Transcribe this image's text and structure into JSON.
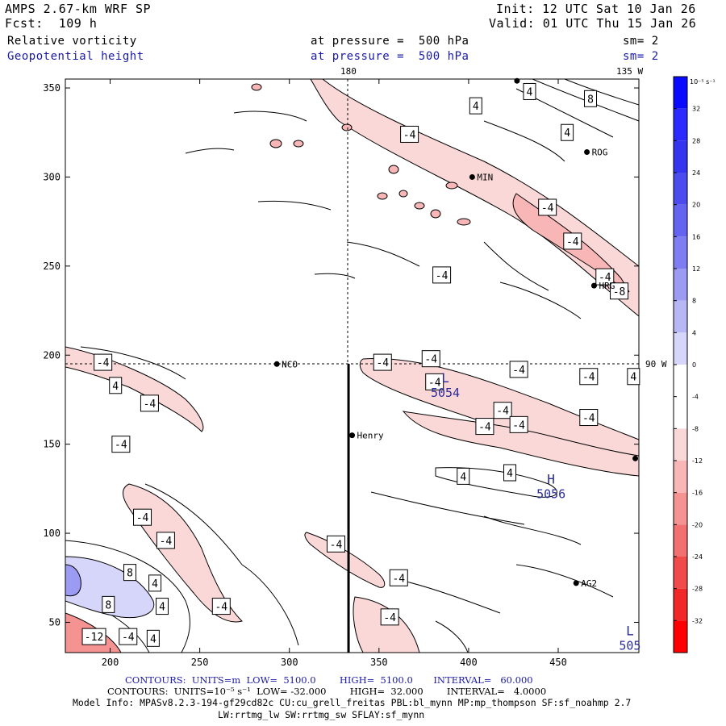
{
  "header": {
    "model": "AMPS 2.67-km WRF SP",
    "forecast": "Fcst:  109 h",
    "init": "Init: 12 UTC Sat 10 Jan 26",
    "valid": "Valid: 01 UTC Thu 15 Jan 26",
    "field1": "Relative vorticity",
    "field2": "Geopotential height",
    "pressure1": "at pressure =  500 hPa",
    "pressure2": "at pressure =  500 hPa",
    "sm1": "sm= 2",
    "sm2": "sm= 2"
  },
  "map": {
    "lon_labels": {
      "top": "180",
      "top_right": "135 W",
      "right": "90 W"
    },
    "x_axis": {
      "range": [
        175,
        495
      ],
      "ticks": [
        200,
        250,
        300,
        350,
        400,
        450
      ]
    },
    "y_axis": {
      "range": [
        33,
        355
      ],
      "ticks": [
        50,
        100,
        150,
        200,
        250,
        300,
        350
      ]
    },
    "stations": [
      {
        "name": "NCO",
        "x": 293,
        "y": 195
      },
      {
        "name": "Henry",
        "x": 335,
        "y": 155
      },
      {
        "name": "ROG",
        "x": 466,
        "y": 314
      },
      {
        "name": "MIN",
        "x": 402,
        "y": 300
      },
      {
        "name": "HRG",
        "x": 470,
        "y": 239
      },
      {
        "name": "AG2",
        "x": 460,
        "y": 72
      },
      {
        "name": "",
        "x": 427,
        "y": 354
      },
      {
        "name": "",
        "x": 493,
        "y": 142
      }
    ],
    "cross_section_x": 333,
    "pressure_centers": [
      {
        "letter": "L",
        "value": "5054",
        "x": 387,
        "y": 183
      },
      {
        "letter": "H",
        "value": "5056",
        "x": 446,
        "y": 126
      },
      {
        "letter": "L",
        "value": "505",
        "x": 490,
        "y": 41
      }
    ],
    "contour_labels": [
      {
        "text": "-4",
        "x": 196,
        "y": 196
      },
      {
        "text": "4",
        "x": 203,
        "y": 183
      },
      {
        "text": "-4",
        "x": 222,
        "y": 173
      },
      {
        "text": "-4",
        "x": 206,
        "y": 150
      },
      {
        "text": "-4",
        "x": 218,
        "y": 109
      },
      {
        "text": "-4",
        "x": 231,
        "y": 96
      },
      {
        "text": "8",
        "x": 211,
        "y": 78
      },
      {
        "text": "4",
        "x": 225,
        "y": 72
      },
      {
        "text": "4",
        "x": 229,
        "y": 59
      },
      {
        "text": "8",
        "x": 199,
        "y": 60
      },
      {
        "text": "-4",
        "x": 262,
        "y": 59
      },
      {
        "text": "-12",
        "x": 191,
        "y": 42
      },
      {
        "text": "-4",
        "x": 210,
        "y": 42
      },
      {
        "text": "4",
        "x": 224,
        "y": 41
      },
      {
        "text": "-4",
        "x": 352,
        "y": 196
      },
      {
        "text": "-4",
        "x": 379,
        "y": 198
      },
      {
        "text": "-4",
        "x": 381,
        "y": 185
      },
      {
        "text": "-4",
        "x": 428,
        "y": 192
      },
      {
        "text": "-4",
        "x": 467,
        "y": 188
      },
      {
        "text": "-4",
        "x": 419,
        "y": 169
      },
      {
        "text": "-4",
        "x": 467,
        "y": 165
      },
      {
        "text": "-4",
        "x": 409,
        "y": 160
      },
      {
        "text": "-4",
        "x": 428,
        "y": 161
      },
      {
        "text": "4",
        "x": 397,
        "y": 132
      },
      {
        "text": "4",
        "x": 423,
        "y": 134
      },
      {
        "text": "-4",
        "x": 326,
        "y": 94
      },
      {
        "text": "-4",
        "x": 361,
        "y": 75
      },
      {
        "text": "-4",
        "x": 356,
        "y": 53
      },
      {
        "text": "-4",
        "x": 367,
        "y": 324
      },
      {
        "text": "-4",
        "x": 385,
        "y": 245
      },
      {
        "text": "-4",
        "x": 444,
        "y": 283
      },
      {
        "text": "-4",
        "x": 458,
        "y": 264
      },
      {
        "text": "-4",
        "x": 476,
        "y": 244
      },
      {
        "text": "-8",
        "x": 484,
        "y": 236
      },
      {
        "text": "4",
        "x": 404,
        "y": 340
      },
      {
        "text": "4",
        "x": 434,
        "y": 348
      },
      {
        "text": "4",
        "x": 455,
        "y": 325
      },
      {
        "text": "8",
        "x": 468,
        "y": 344
      },
      {
        "text": "4",
        "x": 492,
        "y": 188
      }
    ]
  },
  "colorbar": {
    "unit": "10⁻⁵ s⁻¹",
    "ticks": [
      "32",
      "28",
      "24",
      "20",
      "16",
      "12",
      "8",
      "4",
      "0",
      "-4",
      "-8",
      "-12",
      "-16",
      "-20",
      "-24",
      "-28",
      "-32"
    ],
    "colors": [
      "#0a0aff",
      "#2b2bff",
      "#3535f0",
      "#4b4bee",
      "#6464f0",
      "#7e7ef2",
      "#9b9bf4",
      "#b7b7f6",
      "#d6d6fa",
      "#ffffff",
      "#ffffff",
      "#fbd8d8",
      "#f8b6b6",
      "#f59292",
      "#f27070",
      "#ef4b4b",
      "#f02828",
      "#ff0000"
    ]
  },
  "footer": {
    "contours1": "CONTOURS:  UNITS=m  LOW=  5100.0        HIGH=  5100.0       INTERVAL=   60.000",
    "contours2": "CONTOURS:  UNITS=10⁻⁵ s⁻¹  LOW= -32.000        HIGH=  32.000        INTERVAL=   4.0000",
    "model_info": "Model Info: MPASv8.2.3-194-gf29cd82c CU:cu_grell_freitas PBL:bl_mynn MP:mp_thompson SF:sf_noahmp 2.7",
    "model_info2": "LW:rrtmg_lw SW:rrtmg_sw SFLAY:sf_mynn"
  }
}
